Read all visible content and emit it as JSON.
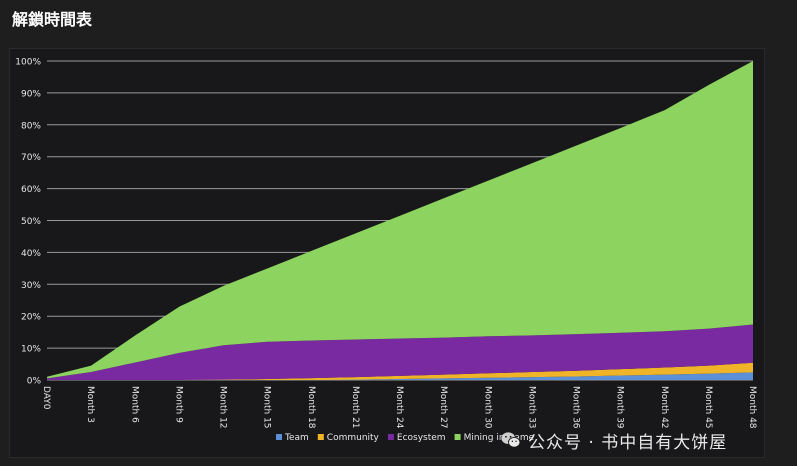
{
  "page": {
    "title": "解鎖時間表"
  },
  "watermark": {
    "text": "公众号 · 书中自有大饼屋"
  },
  "colors": {
    "background": "#1e1e1f",
    "panel": "#18181a",
    "grid": "#9a9a9a",
    "axis_text": "#e6e6e6",
    "team": "#5b8fd6",
    "community": "#f0b429",
    "ecosystem": "#7a2aa0",
    "mining": "#8dd35f"
  },
  "chart_data": {
    "type": "area",
    "stacked": true,
    "title": "",
    "xlabel": "",
    "ylabel": "",
    "ylim": [
      0,
      100
    ],
    "y_ticks": [
      "0%",
      "10%",
      "20%",
      "30%",
      "40%",
      "50%",
      "60%",
      "70%",
      "80%",
      "90%",
      "100%"
    ],
    "x_tick_labels": [
      "DAY0",
      "Month 3",
      "Month 6",
      "Month 9",
      "Month 12",
      "Month 15",
      "Month 18",
      "Month 21",
      "Month 24",
      "Month 27",
      "Month 30",
      "Month 33",
      "Month 36",
      "Month 39",
      "Month 42",
      "Month 45",
      "Month 48"
    ],
    "x": [
      0,
      3,
      6,
      9,
      12,
      15,
      18,
      21,
      24,
      27,
      30,
      33,
      36,
      39,
      42,
      45,
      48
    ],
    "grid": true,
    "legend_position": "bottom-right",
    "series": [
      {
        "name": "Team",
        "color": "#5b8fd6",
        "values": [
          0,
          0,
          0,
          0,
          0,
          0,
          0,
          0.1,
          0.3,
          0.5,
          0.7,
          0.9,
          1.1,
          1.4,
          1.7,
          2.0,
          2.4
        ]
      },
      {
        "name": "Community",
        "color": "#f0b429",
        "values": [
          0,
          0,
          0,
          0,
          0.1,
          0.3,
          0.6,
          0.8,
          1.0,
          1.2,
          1.4,
          1.6,
          1.8,
          2.0,
          2.2,
          2.5,
          3.0
        ]
      },
      {
        "name": "Ecosystem",
        "color": "#7a2aa0",
        "values": [
          0.5,
          2.5,
          5.5,
          8.5,
          10.8,
          11.7,
          11.8,
          11.8,
          11.7,
          11.6,
          11.6,
          11.5,
          11.5,
          11.4,
          11.4,
          11.6,
          12.0
        ]
      },
      {
        "name": "Mining in Game",
        "color": "#8dd35f",
        "values": [
          0.5,
          2.0,
          8.5,
          14.5,
          18.6,
          23.0,
          28.1,
          33.3,
          38.5,
          43.7,
          48.8,
          54.0,
          59.1,
          64.2,
          69.3,
          76.4,
          82.6
        ]
      }
    ]
  }
}
